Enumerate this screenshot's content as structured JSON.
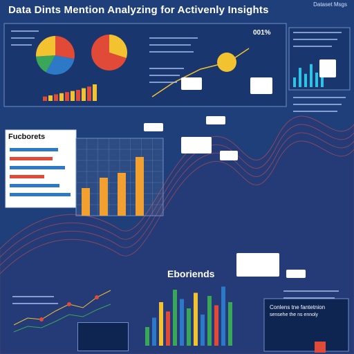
{
  "header": {
    "title": "Data Dints Mention Analyzing for Activenly Insights",
    "top_right": "Dataset Msgs"
  },
  "sections": {
    "forecasts_title": "Fucborets",
    "efforts_title": "Eboriends",
    "percent_badge": "001%",
    "bottom_right_title": "Conlens tne fantetnion",
    "bottom_right_sub": "sensehe the ns ennoly"
  },
  "chart_data": [
    {
      "type": "pie",
      "values": [
        28,
        30,
        16,
        26
      ],
      "colors": [
        "#e14a36",
        "#2d79c7",
        "#3aa65a",
        "#f2c230"
      ]
    },
    {
      "type": "pie",
      "values": [
        30,
        70
      ],
      "colors": [
        "#f2c230",
        "#e14a36"
      ]
    },
    {
      "type": "bar",
      "values": [
        8,
        10,
        12,
        14,
        16,
        18,
        20,
        23,
        26,
        30
      ],
      "colors": [
        "#e14a36",
        "#f2c230",
        "#e14a36",
        "#f2c230",
        "#e14a36",
        "#f2c230",
        "#e14a36",
        "#f2c230",
        "#e14a36",
        "#f2c230"
      ]
    },
    {
      "type": "bar",
      "values": [
        40,
        55,
        62,
        85
      ],
      "colors": [
        "#f2a030",
        "#f2a030",
        "#f2a030",
        "#f2a030"
      ]
    },
    {
      "type": "bar",
      "values": [
        30,
        45,
        70,
        55,
        90,
        75,
        60,
        85,
        50,
        80,
        65,
        95,
        70
      ],
      "colors": [
        "#3aa65a",
        "#2d79c7",
        "#f2c230",
        "#e14a36",
        "#3aa65a",
        "#2d79c7",
        "#3aa65a",
        "#f2c230",
        "#2d79c7",
        "#3aa65a",
        "#e14a36",
        "#2d79c7",
        "#3aa65a"
      ]
    },
    {
      "type": "bar",
      "values": [
        40,
        80,
        55,
        95,
        60,
        75
      ],
      "colors": [
        "#2ec3e6",
        "#2ec3e6",
        "#2ec3e6",
        "#2ec3e6",
        "#2ec3e6",
        "#2ec3e6"
      ]
    }
  ]
}
